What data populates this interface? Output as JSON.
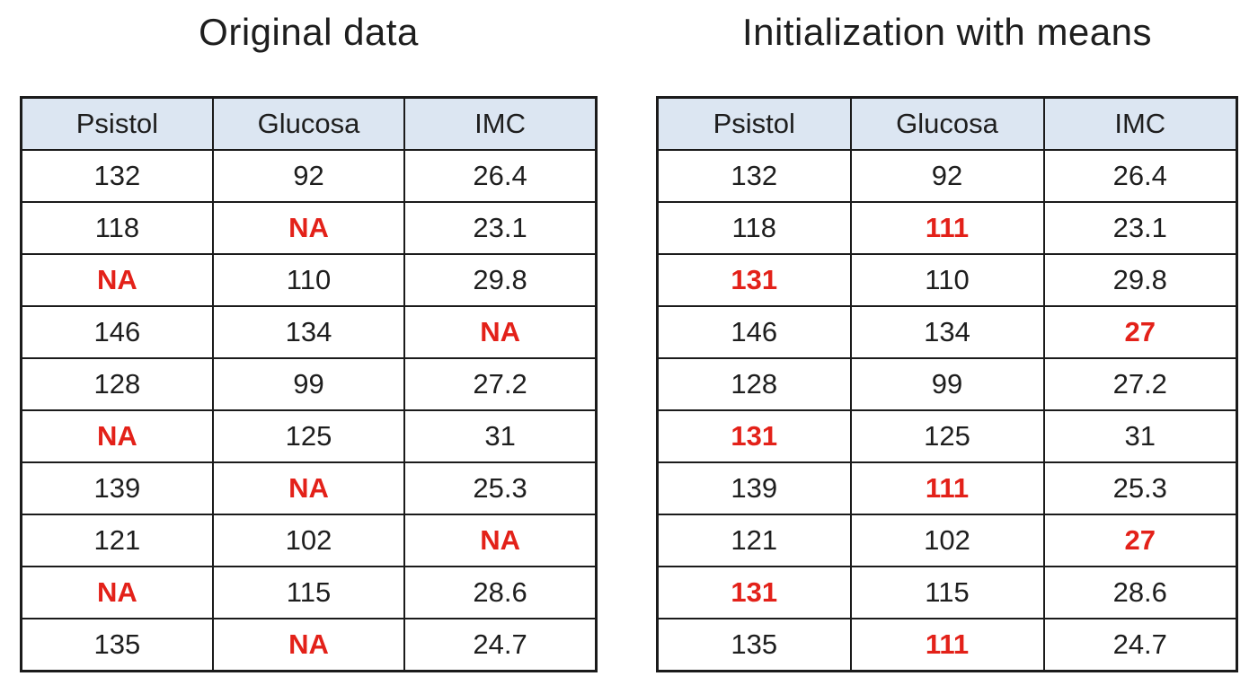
{
  "colors": {
    "page_bg": "#ffffff",
    "header_bg": "#dce6f2",
    "border": "#1b1b1b",
    "text": "#1e1e1e",
    "missing": "#e32119"
  },
  "tables": [
    {
      "title": "Original data",
      "columns": [
        "Psistol",
        "Glucosa",
        "IMC"
      ],
      "rows": [
        [
          {
            "v": "132",
            "red": false
          },
          {
            "v": "92",
            "red": false
          },
          {
            "v": "26.4",
            "red": false
          }
        ],
        [
          {
            "v": "118",
            "red": false
          },
          {
            "v": "NA",
            "red": true
          },
          {
            "v": "23.1",
            "red": false
          }
        ],
        [
          {
            "v": "NA",
            "red": true
          },
          {
            "v": "110",
            "red": false
          },
          {
            "v": "29.8",
            "red": false
          }
        ],
        [
          {
            "v": "146",
            "red": false
          },
          {
            "v": "134",
            "red": false
          },
          {
            "v": "NA",
            "red": true
          }
        ],
        [
          {
            "v": "128",
            "red": false
          },
          {
            "v": "99",
            "red": false
          },
          {
            "v": "27.2",
            "red": false
          }
        ],
        [
          {
            "v": "NA",
            "red": true
          },
          {
            "v": "125",
            "red": false
          },
          {
            "v": "31",
            "red": false
          }
        ],
        [
          {
            "v": "139",
            "red": false
          },
          {
            "v": "NA",
            "red": true
          },
          {
            "v": "25.3",
            "red": false
          }
        ],
        [
          {
            "v": "121",
            "red": false
          },
          {
            "v": "102",
            "red": false
          },
          {
            "v": "NA",
            "red": true
          }
        ],
        [
          {
            "v": "NA",
            "red": true
          },
          {
            "v": "115",
            "red": false
          },
          {
            "v": "28.6",
            "red": false
          }
        ],
        [
          {
            "v": "135",
            "red": false
          },
          {
            "v": "NA",
            "red": true
          },
          {
            "v": "24.7",
            "red": false
          }
        ]
      ]
    },
    {
      "title": "Initialization with means",
      "columns": [
        "Psistol",
        "Glucosa",
        "IMC"
      ],
      "rows": [
        [
          {
            "v": "132",
            "red": false
          },
          {
            "v": "92",
            "red": false
          },
          {
            "v": "26.4",
            "red": false
          }
        ],
        [
          {
            "v": "118",
            "red": false
          },
          {
            "v": "111",
            "red": true
          },
          {
            "v": "23.1",
            "red": false
          }
        ],
        [
          {
            "v": "131",
            "red": true
          },
          {
            "v": "110",
            "red": false
          },
          {
            "v": "29.8",
            "red": false
          }
        ],
        [
          {
            "v": "146",
            "red": false
          },
          {
            "v": "134",
            "red": false
          },
          {
            "v": "27",
            "red": true
          }
        ],
        [
          {
            "v": "128",
            "red": false
          },
          {
            "v": "99",
            "red": false
          },
          {
            "v": "27.2",
            "red": false
          }
        ],
        [
          {
            "v": "131",
            "red": true
          },
          {
            "v": "125",
            "red": false
          },
          {
            "v": "31",
            "red": false
          }
        ],
        [
          {
            "v": "139",
            "red": false
          },
          {
            "v": "111",
            "red": true
          },
          {
            "v": "25.3",
            "red": false
          }
        ],
        [
          {
            "v": "121",
            "red": false
          },
          {
            "v": "102",
            "red": false
          },
          {
            "v": "27",
            "red": true
          }
        ],
        [
          {
            "v": "131",
            "red": true
          },
          {
            "v": "115",
            "red": false
          },
          {
            "v": "28.6",
            "red": false
          }
        ],
        [
          {
            "v": "135",
            "red": false
          },
          {
            "v": "111",
            "red": true
          },
          {
            "v": "24.7",
            "red": false
          }
        ]
      ]
    }
  ]
}
